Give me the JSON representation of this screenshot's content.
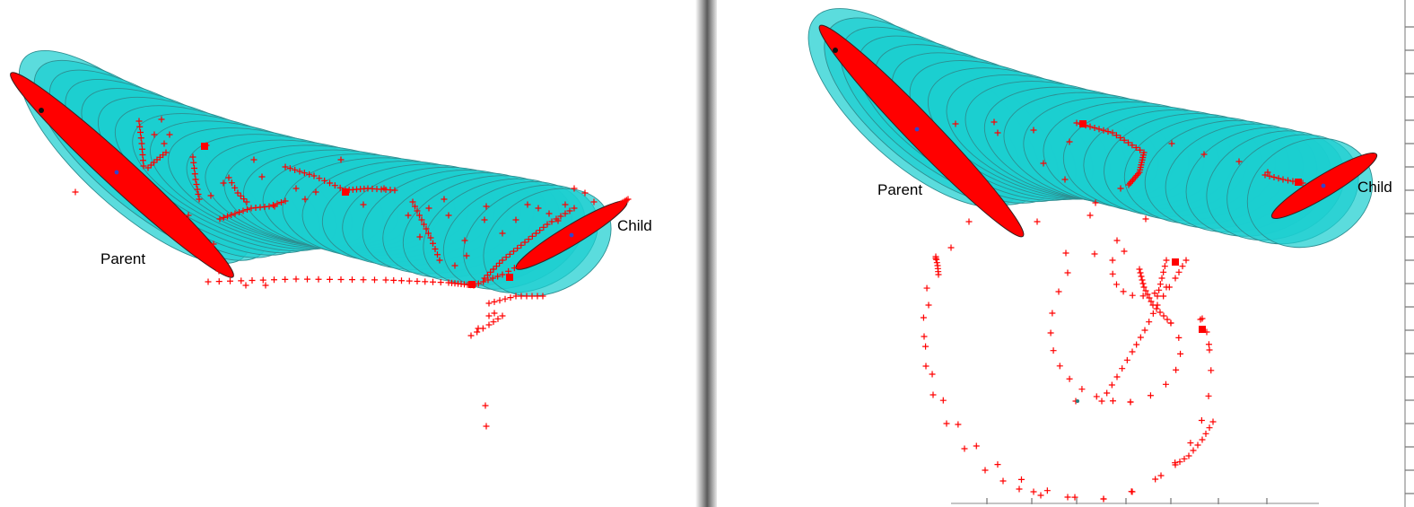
{
  "panels": [
    {
      "id": "left",
      "parent_label": "Parent",
      "child_label": "Child"
    },
    {
      "id": "right",
      "parent_label": "Parent",
      "child_label": "Child"
    }
  ],
  "colors": {
    "background": "#ffffff",
    "ellipse_fill": "#1ccfd0",
    "ellipse_stroke": "#2e8e91",
    "endpoint_fill": "#ff0000",
    "marker": "#ff0000",
    "divider": "#6f6f6f"
  },
  "markers": {
    "symbol": "+",
    "color": "#ff0000"
  }
}
